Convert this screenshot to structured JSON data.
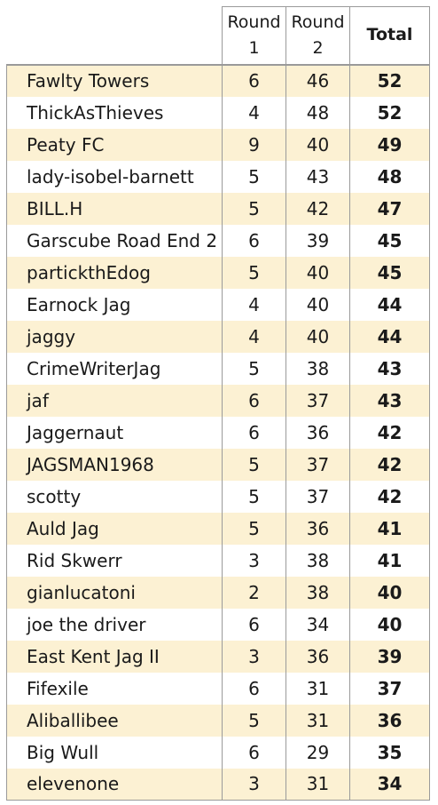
{
  "headers": {
    "round1": "Round 1",
    "round2": "Round 2",
    "total": "Total"
  },
  "rows": [
    {
      "name": "Fawlty Towers",
      "r1": "6",
      "r2": "46",
      "total": "52"
    },
    {
      "name": "ThickAsThieves",
      "r1": "4",
      "r2": "48",
      "total": "52"
    },
    {
      "name": "Peaty FC",
      "r1": "9",
      "r2": "40",
      "total": "49"
    },
    {
      "name": "lady-isobel-barnett",
      "r1": "5",
      "r2": "43",
      "total": "48"
    },
    {
      "name": "BILL.H",
      "r1": "5",
      "r2": "42",
      "total": "47"
    },
    {
      "name": "Garscube Road End 2",
      "r1": "6",
      "r2": "39",
      "total": "45"
    },
    {
      "name": "partickthEdog",
      "r1": "5",
      "r2": "40",
      "total": "45"
    },
    {
      "name": "Earnock Jag",
      "r1": "4",
      "r2": "40",
      "total": "44"
    },
    {
      "name": "jaggy",
      "r1": "4",
      "r2": "40",
      "total": "44"
    },
    {
      "name": "CrimeWriterJag",
      "r1": "5",
      "r2": "38",
      "total": "43"
    },
    {
      "name": "jaf",
      "r1": "6",
      "r2": "37",
      "total": "43"
    },
    {
      "name": "Jaggernaut",
      "r1": "6",
      "r2": "36",
      "total": "42"
    },
    {
      "name": "JAGSMAN1968",
      "r1": "5",
      "r2": "37",
      "total": "42"
    },
    {
      "name": "scotty",
      "r1": "5",
      "r2": "37",
      "total": "42"
    },
    {
      "name": "Auld Jag",
      "r1": "5",
      "r2": "36",
      "total": "41"
    },
    {
      "name": "Rid Skwerr",
      "r1": "3",
      "r2": "38",
      "total": "41"
    },
    {
      "name": "gianlucatoni",
      "r1": "2",
      "r2": "38",
      "total": "40"
    },
    {
      "name": "joe the driver",
      "r1": "6",
      "r2": "34",
      "total": "40"
    },
    {
      "name": "East Kent Jag II",
      "r1": "3",
      "r2": "36",
      "total": "39"
    },
    {
      "name": "Fifexile",
      "r1": "6",
      "r2": "31",
      "total": "37"
    },
    {
      "name": "Aliballibee",
      "r1": "5",
      "r2": "31",
      "total": "36"
    },
    {
      "name": "Big Wull",
      "r1": "6",
      "r2": "29",
      "total": "35"
    },
    {
      "name": "elevenone",
      "r1": "3",
      "r2": "31",
      "total": "34"
    }
  ],
  "colors": {
    "stripe": "#fcf1d3",
    "border": "#9a9a9a"
  }
}
